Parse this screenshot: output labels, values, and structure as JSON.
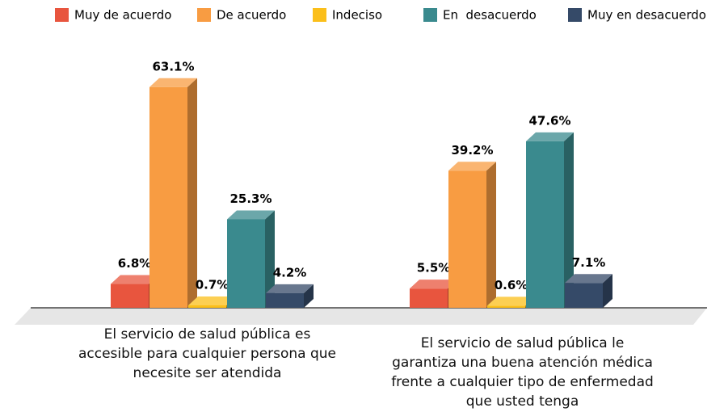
{
  "chart_data": {
    "type": "bar3d",
    "categories": [
      "El servicio de salud pública es accesible para cualquier persona que necesite ser atendida",
      "El servicio de salud pública le garantiza una buena atención médica frente a cualquier tipo  de enfermedad que usted tenga"
    ],
    "series": [
      {
        "name": "Muy de acuerdo",
        "color": "#e8553e",
        "values": [
          6.8,
          5.5
        ],
        "value_labels": [
          "6.8%",
          "5.5%"
        ]
      },
      {
        "name": "De acuerdo",
        "color": "#f89c42",
        "values": [
          63.1,
          39.2
        ],
        "value_labels": [
          "63.1%",
          "39.2%"
        ]
      },
      {
        "name": "Indeciso",
        "color": "#fbbf1a",
        "values": [
          0.7,
          0.6
        ],
        "value_labels": [
          "0.7%",
          "0.6%"
        ]
      },
      {
        "name": "En  desacuerdo",
        "color": "#3a8a8e",
        "values": [
          25.3,
          47.6
        ],
        "value_labels": [
          "25.3%",
          "47.6%"
        ]
      },
      {
        "name": "Muy en desacuerdo",
        "color": "#354a68",
        "values": [
          4.2,
          7.1
        ],
        "value_labels": [
          "4.2%",
          "7.1%"
        ]
      }
    ],
    "legend": "top"
  }
}
